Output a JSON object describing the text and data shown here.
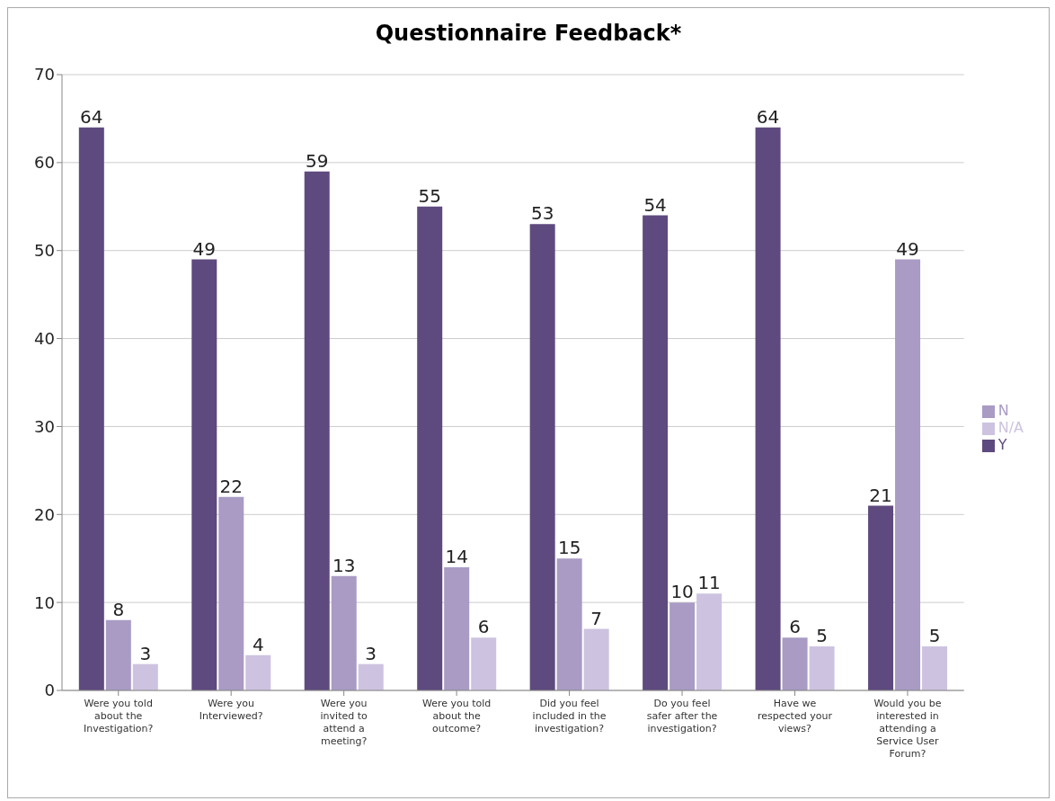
{
  "chart_data": {
    "type": "bar",
    "title": "Questionnaire Feedback*",
    "categories": [
      "Were you told about the Investigation?",
      "Were you Interviewed?",
      "Were you invited to attend a meeting?",
      "Were you told about the outcome?",
      "Did you feel included in the investigation?",
      "Do you feel safer after the investigation?",
      "Have we respected your views?",
      "Would you be interested in attending a Service User Forum?"
    ],
    "series": [
      {
        "name": "Y",
        "color": "#5e4a7e",
        "values": [
          64,
          49,
          59,
          55,
          53,
          54,
          64,
          21
        ]
      },
      {
        "name": "N",
        "color": "#a99bc4",
        "values": [
          8,
          22,
          13,
          14,
          15,
          10,
          6,
          49
        ]
      },
      {
        "name": "N/A",
        "color": "#cdc3e0",
        "values": [
          3,
          4,
          3,
          6,
          7,
          11,
          5,
          5
        ]
      }
    ],
    "ylim": [
      0,
      70
    ],
    "yticks": [
      0,
      10,
      20,
      30,
      40,
      50,
      60,
      70
    ],
    "grid": "y",
    "legend": "right",
    "data_labels": true
  }
}
